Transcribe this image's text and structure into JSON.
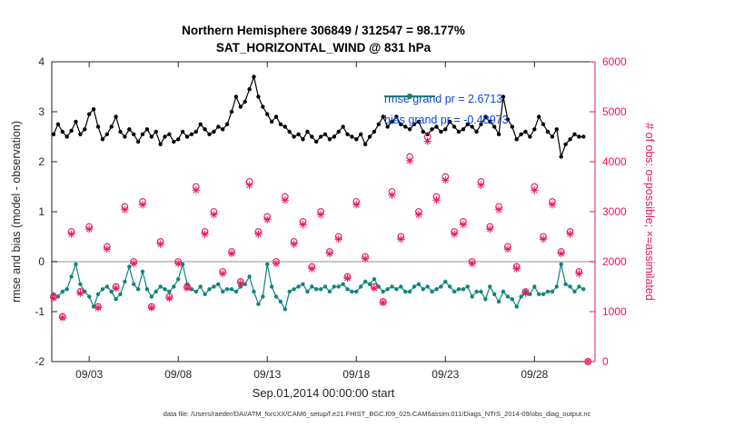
{
  "chart_data": {
    "type": "line",
    "title": "Northern Hemisphere 306849 / 312547 = 98.177%",
    "subtitle": "SAT_HORIZONTAL_WIND @ 831 hPa",
    "xlabel": "Sep.01,2014 00:00:00 start",
    "ylabel_left": "rmse and bias (model - observation)",
    "ylabel_right": "# of obs: o=possible; ×=assimilated",
    "caption": "data file: /Users/raeder/DAI/ATM_forcXX/CAM6_setup/f.e21.FHIST_BGC.f09_025.CAM6assim.011/Diags_NTrS_2014-09/obs_diag_output.nc",
    "rmse_grand": 2.6713,
    "bias_grand": -0.48973,
    "legend": [
      {
        "series": "rmse",
        "label": "rmse grand pr = 2.6713"
      },
      {
        "series": "bias",
        "label": "bias grand pr = -0.48973"
      }
    ],
    "colors": {
      "rmse": "#000000",
      "bias": "#0e857c",
      "obs": "#e8175d",
      "legend_text": "#0a46e0",
      "axis": "#262626",
      "zero_line": "#b5b5b5"
    },
    "x_axis": {
      "range_days": [
        0.9,
        31.4
      ],
      "tick_days": [
        3,
        8,
        13,
        18,
        23,
        28
      ],
      "tick_labels": [
        "09/03",
        "09/08",
        "09/13",
        "09/18",
        "09/23",
        "09/28"
      ]
    },
    "y_left": {
      "range": [
        -2,
        4
      ],
      "ticks": [
        4,
        3,
        2,
        1,
        0,
        -1,
        -2
      ]
    },
    "y_right": {
      "range": [
        0,
        6000
      ],
      "ticks": [
        0,
        1000,
        2000,
        3000,
        4000,
        5000,
        6000
      ]
    },
    "zero_line": 0,
    "series": [
      {
        "name": "rmse",
        "axis": "left",
        "t_start": 1.0,
        "t_step": 0.25,
        "values": [
          2.55,
          2.75,
          2.6,
          2.5,
          2.62,
          2.8,
          2.55,
          2.65,
          2.95,
          3.05,
          2.7,
          2.45,
          2.55,
          2.7,
          2.9,
          2.6,
          2.5,
          2.65,
          2.55,
          2.4,
          2.55,
          2.65,
          2.5,
          2.6,
          2.35,
          2.5,
          2.55,
          2.4,
          2.45,
          2.6,
          2.5,
          2.55,
          2.6,
          2.75,
          2.65,
          2.55,
          2.6,
          2.7,
          2.65,
          2.75,
          3.0,
          3.3,
          3.1,
          3.2,
          3.45,
          3.7,
          3.3,
          3.1,
          2.95,
          2.8,
          2.9,
          2.75,
          2.7,
          2.6,
          2.5,
          2.55,
          2.45,
          2.6,
          2.5,
          2.4,
          2.5,
          2.55,
          2.45,
          2.5,
          2.6,
          2.7,
          2.55,
          2.5,
          2.45,
          2.55,
          2.35,
          2.5,
          2.6,
          2.75,
          2.9,
          2.7,
          2.8,
          2.9,
          2.75,
          2.7,
          2.65,
          2.75,
          2.8,
          2.6,
          2.55,
          2.65,
          2.7,
          2.6,
          2.65,
          2.8,
          2.7,
          2.6,
          2.65,
          2.75,
          2.7,
          2.6,
          2.75,
          2.9,
          2.8,
          2.7,
          2.55,
          3.3,
          2.85,
          2.7,
          2.45,
          2.55,
          2.6,
          2.5,
          2.65,
          2.9,
          2.75,
          2.6,
          2.5,
          2.65,
          2.1,
          2.35,
          2.45,
          2.55,
          2.5,
          2.5
        ]
      },
      {
        "name": "bias",
        "axis": "left",
        "t_start": 1.0,
        "t_step": 0.25,
        "values": [
          -0.65,
          -0.7,
          -0.6,
          -0.55,
          -0.3,
          -0.05,
          -0.45,
          -0.6,
          -0.7,
          -0.9,
          -0.65,
          -0.55,
          -0.5,
          -0.6,
          -0.75,
          -0.65,
          -0.4,
          -0.1,
          -0.45,
          -0.55,
          -0.2,
          -0.55,
          -0.7,
          -0.6,
          -0.5,
          -0.55,
          -0.6,
          -0.5,
          -0.35,
          -0.05,
          -0.45,
          -0.55,
          -0.6,
          -0.5,
          -0.65,
          -0.55,
          -0.5,
          -0.45,
          -0.6,
          -0.55,
          -0.55,
          -0.6,
          -0.5,
          -0.45,
          -0.3,
          -0.6,
          -0.85,
          -0.7,
          -0.05,
          -0.5,
          -0.7,
          -0.8,
          -0.95,
          -0.6,
          -0.55,
          -0.5,
          -0.45,
          -0.6,
          -0.5,
          -0.55,
          -0.55,
          -0.5,
          -0.6,
          -0.5,
          -0.5,
          -0.45,
          -0.55,
          -0.6,
          -0.6,
          -0.5,
          -0.4,
          -0.45,
          -0.35,
          -0.5,
          -0.6,
          -0.55,
          -0.5,
          -0.55,
          -0.5,
          -0.6,
          -0.6,
          -0.5,
          -0.45,
          -0.55,
          -0.5,
          -0.6,
          -0.55,
          -0.5,
          -0.4,
          -0.5,
          -0.6,
          -0.55,
          -0.55,
          -0.5,
          -0.7,
          -0.6,
          -0.6,
          -0.75,
          -0.5,
          -0.65,
          -0.8,
          -0.6,
          -0.7,
          -0.75,
          -0.9,
          -0.7,
          -0.6,
          -0.65,
          -0.5,
          -0.65,
          -0.65,
          -0.6,
          -0.6,
          -0.5,
          -0.05,
          -0.45,
          -0.5,
          -0.6,
          -0.5,
          -0.55
        ]
      },
      {
        "name": "possible",
        "axis": "right",
        "marker": "o",
        "t_start": 1.0,
        "t_step": 0.5,
        "values": [
          1300,
          900,
          2600,
          1400,
          2700,
          1100,
          2300,
          1500,
          3100,
          2000,
          3200,
          1100,
          2400,
          1300,
          2000,
          1500,
          3500,
          2600,
          3000,
          1800,
          2200,
          1600,
          3600,
          2600,
          2900,
          2000,
          3300,
          2400,
          2800,
          1900,
          3000,
          2200,
          2500,
          1700,
          3200,
          2100,
          1500,
          1200,
          3400,
          2500,
          4100,
          3000,
          4500,
          3300,
          3700,
          2600,
          2800,
          2000,
          3600,
          2700,
          3100,
          2300,
          1900,
          1400,
          3500,
          2500,
          3200,
          2200,
          2600,
          1800,
          0
        ]
      },
      {
        "name": "assimilated",
        "axis": "right",
        "marker": "x",
        "t_start": 1.0,
        "t_step": 0.5,
        "values": [
          1270,
          880,
          2550,
          1370,
          2650,
          1080,
          2250,
          1470,
          3040,
          1960,
          3140,
          1080,
          2350,
          1270,
          1960,
          1470,
          3430,
          2550,
          2940,
          1760,
          2160,
          1570,
          3530,
          2550,
          2840,
          1960,
          3230,
          2350,
          2740,
          1860,
          2940,
          2160,
          2450,
          1670,
          3140,
          2060,
          1470,
          1180,
          3330,
          2450,
          4020,
          2940,
          4410,
          3230,
          3630,
          2550,
          2740,
          1960,
          3530,
          2650,
          3040,
          2250,
          1860,
          1370,
          3430,
          2450,
          3140,
          2160,
          2550,
          1760,
          0
        ]
      }
    ]
  }
}
